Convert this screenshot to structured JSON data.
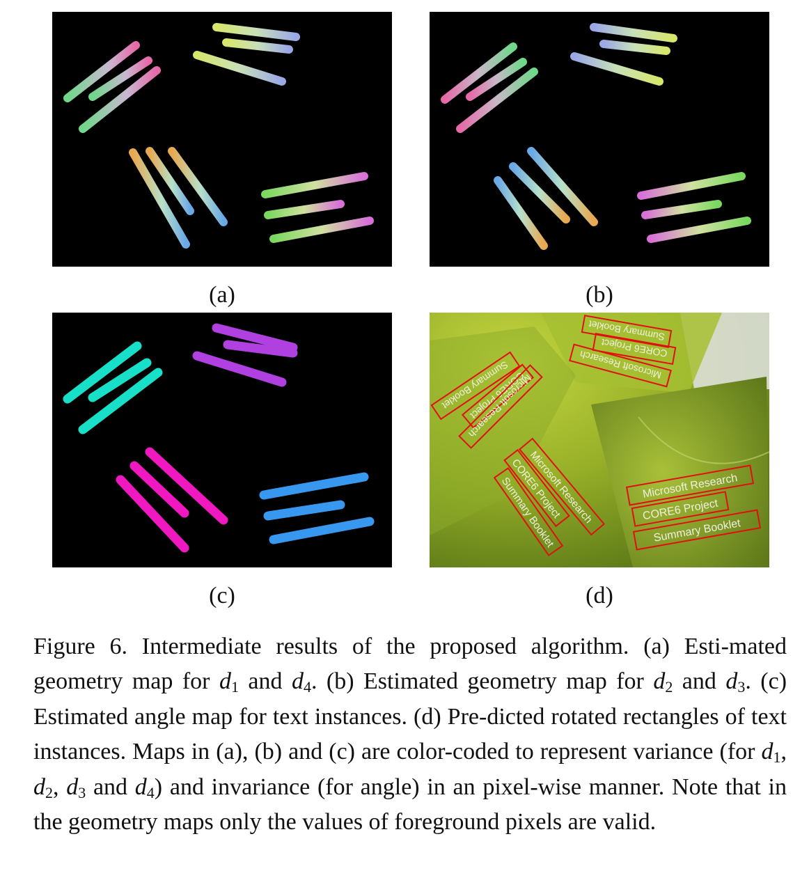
{
  "panels": [
    {
      "id": "a",
      "label": "(a)"
    },
    {
      "id": "b",
      "label": "(b)"
    },
    {
      "id": "c",
      "label": "(c)"
    },
    {
      "id": "d",
      "label": "(d)"
    }
  ],
  "boxes": {
    "group_top_left": [
      "Summary Booklet",
      "CORE6 Project",
      "Microsoft Research"
    ],
    "group_top_right": [
      "Summary Booklet",
      "CORE6 Project",
      "Microsoft Research"
    ],
    "group_center": [
      "Microsoft Research",
      "CORE6 Project",
      "Summary Booklet"
    ],
    "group_bottom_right": [
      "Microsoft Research",
      "CORE6 Project",
      "Summary Booklet"
    ]
  },
  "caption": {
    "c1": "Figure 6. Intermediate results of the proposed algorithm. (a) Esti-mated geometry map for ",
    "d1": "d",
    "d1s": "1",
    "c2": " and ",
    "d4": "d",
    "d4s": "4",
    "c3": ". (b) Estimated geometry map for ",
    "d2": "d",
    "d2s": "2",
    "c4": " and ",
    "d3": "d",
    "d3s": "3",
    "c5": ". (c) Estimated angle map for text instances. (d) Pre-dicted rotated rectangles of text instances. Maps in (a), (b) and (c) are color-coded to represent variance (for ",
    "v1": "d",
    "v1s": "1",
    "sep1": ", ",
    "v2": "d",
    "v2s": "2",
    "sep2": ", ",
    "v3": "d",
    "v3s": "3",
    "c6": " and ",
    "v4": "d",
    "v4s": "4",
    "c7": ") and invariance (for angle) in an pixel-wise manner.  Note that in the geometry maps only the values of foreground pixels are valid."
  }
}
